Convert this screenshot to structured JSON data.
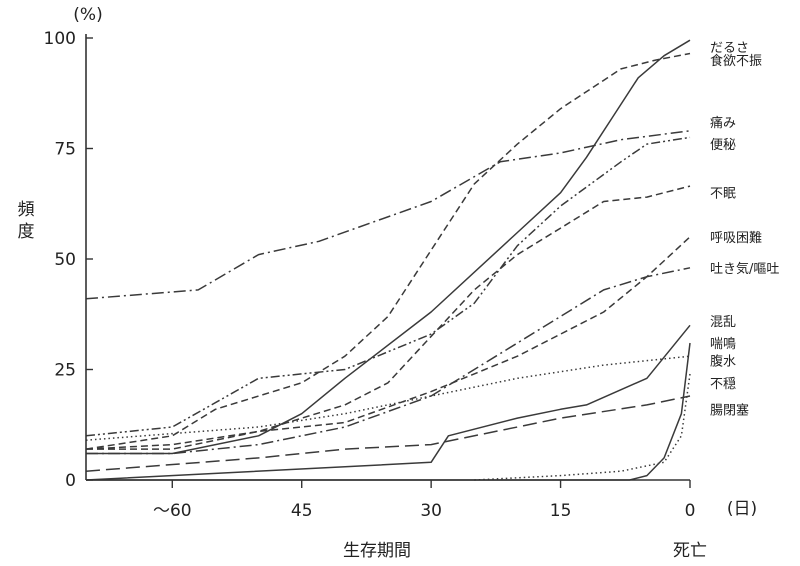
{
  "chart_data": {
    "type": "line",
    "y_unit": "(%)",
    "ylabel": "頻度",
    "xlabel": "生存期間",
    "x_end_label": "死亡",
    "x_unit": "(日)",
    "ylim": [
      0,
      100
    ],
    "xlim": [
      70,
      0
    ],
    "x_reversed": true,
    "x_ticks": [
      {
        "v": 60,
        "label": "〜60"
      },
      {
        "v": 45,
        "label": "45"
      },
      {
        "v": 30,
        "label": "30"
      },
      {
        "v": 15,
        "label": "15"
      },
      {
        "v": 0,
        "label": "0"
      }
    ],
    "y_ticks": [
      {
        "v": 0,
        "label": "0"
      },
      {
        "v": 25,
        "label": "25"
      },
      {
        "v": 50,
        "label": "50"
      },
      {
        "v": 75,
        "label": "75"
      },
      {
        "v": 100,
        "label": "100"
      }
    ],
    "grid": false,
    "series": [
      {
        "name": "だるさ",
        "style": "solid",
        "label_y": 98,
        "points": [
          [
            70,
            6
          ],
          [
            60,
            6
          ],
          [
            50,
            10
          ],
          [
            45,
            15
          ],
          [
            40,
            23
          ],
          [
            30,
            38
          ],
          [
            20,
            56
          ],
          [
            15,
            65
          ],
          [
            12,
            73
          ],
          [
            9,
            82
          ],
          [
            6,
            91
          ],
          [
            3,
            96
          ],
          [
            0,
            99.5
          ]
        ]
      },
      {
        "name": "食欲不振",
        "style": "dash",
        "label_y": 95,
        "points": [
          [
            70,
            7
          ],
          [
            60,
            10
          ],
          [
            55,
            16
          ],
          [
            45,
            22
          ],
          [
            40,
            28
          ],
          [
            35,
            37
          ],
          [
            30,
            52
          ],
          [
            25,
            67
          ],
          [
            20,
            76
          ],
          [
            15,
            84
          ],
          [
            8,
            93
          ],
          [
            4,
            95
          ],
          [
            0,
            96.5
          ]
        ]
      },
      {
        "name": "痛み",
        "style": "dashdot",
        "label_y": 81,
        "points": [
          [
            70,
            41
          ],
          [
            57,
            43
          ],
          [
            50,
            51
          ],
          [
            43,
            54
          ],
          [
            30,
            63
          ],
          [
            22,
            72
          ],
          [
            15,
            74
          ],
          [
            8,
            77
          ],
          [
            0,
            79
          ]
        ]
      },
      {
        "name": "便秘",
        "style": "dashdot2",
        "label_y": 76,
        "points": [
          [
            70,
            10
          ],
          [
            60,
            12
          ],
          [
            50,
            23
          ],
          [
            40,
            25
          ],
          [
            30,
            33
          ],
          [
            25,
            40
          ],
          [
            20,
            53
          ],
          [
            15,
            62
          ],
          [
            8,
            72
          ],
          [
            5,
            76
          ],
          [
            0,
            77.5
          ]
        ]
      },
      {
        "name": "不眠",
        "style": "dash",
        "label_y": 65,
        "points": [
          [
            70,
            7
          ],
          [
            60,
            8
          ],
          [
            50,
            11
          ],
          [
            40,
            17
          ],
          [
            35,
            22
          ],
          [
            25,
            43
          ],
          [
            20,
            51
          ],
          [
            15,
            57
          ],
          [
            10,
            63
          ],
          [
            5,
            64
          ],
          [
            0,
            66.5
          ]
        ]
      },
      {
        "name": "呼吸困難",
        "style": "dash",
        "label_y": 55,
        "points": [
          [
            70,
            7
          ],
          [
            60,
            7
          ],
          [
            50,
            11
          ],
          [
            40,
            13
          ],
          [
            30,
            20
          ],
          [
            20,
            28
          ],
          [
            10,
            38
          ],
          [
            5,
            46
          ],
          [
            0,
            55
          ]
        ]
      },
      {
        "name": "吐き気/嘔吐",
        "style": "dashdot",
        "label_y": 48,
        "points": [
          [
            70,
            6
          ],
          [
            60,
            6
          ],
          [
            50,
            8
          ],
          [
            40,
            12
          ],
          [
            30,
            19
          ],
          [
            20,
            31
          ],
          [
            10,
            43
          ],
          [
            5,
            46
          ],
          [
            0,
            48
          ]
        ]
      },
      {
        "name": "混乱",
        "style": "solid",
        "label_y": 36,
        "points": [
          [
            70,
            0
          ],
          [
            30,
            4
          ],
          [
            28,
            10
          ],
          [
            20,
            14
          ],
          [
            15,
            16
          ],
          [
            12,
            17
          ],
          [
            5,
            23
          ],
          [
            0,
            35
          ]
        ]
      },
      {
        "name": "喘鳴",
        "style": "dot",
        "label_y": 31,
        "points": [
          [
            70,
            9
          ],
          [
            50,
            12
          ],
          [
            40,
            15
          ],
          [
            30,
            19
          ],
          [
            20,
            23
          ],
          [
            10,
            26
          ],
          [
            0,
            28
          ]
        ]
      },
      {
        "name": "腹水",
        "style": "longdash",
        "label_y": 27,
        "points": [
          [
            70,
            2
          ],
          [
            50,
            5
          ],
          [
            40,
            7
          ],
          [
            30,
            8
          ],
          [
            20,
            12
          ],
          [
            15,
            14
          ],
          [
            5,
            17
          ],
          [
            0,
            19
          ]
        ]
      },
      {
        "name": "不穏",
        "style": "solid",
        "label_y": 22,
        "points": [
          [
            70,
            0
          ],
          [
            10,
            0
          ],
          [
            7,
            0
          ],
          [
            5,
            1
          ],
          [
            3,
            5
          ],
          [
            1,
            15
          ],
          [
            0,
            31
          ]
        ]
      },
      {
        "name": "腸閉塞",
        "style": "dot",
        "label_y": 16,
        "points": [
          [
            25,
            0
          ],
          [
            15,
            1
          ],
          [
            8,
            2
          ],
          [
            3,
            4
          ],
          [
            1,
            10
          ],
          [
            0,
            24
          ]
        ]
      }
    ]
  }
}
